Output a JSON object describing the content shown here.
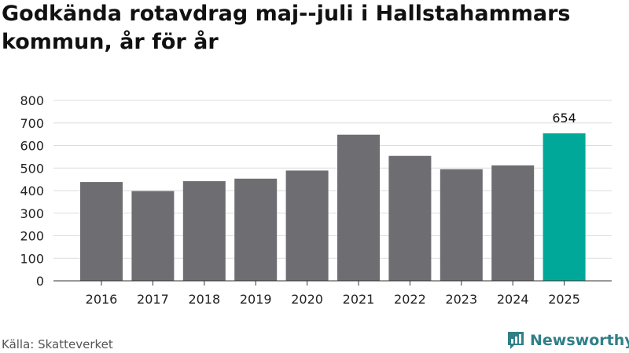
{
  "title": "Godkända rotavdrag maj--juli i Hallstahammars kommun, år för år",
  "source": "Källa: Skatteverket",
  "brand": {
    "name": "Newsworthy",
    "icon": "newsworthy-logo-icon"
  },
  "colors": {
    "bar": "#6e6d72",
    "highlight": "#00a89a",
    "grid": "#dddddd",
    "brand": "#2f7f88"
  },
  "chart_data": {
    "type": "bar",
    "title": "Godkända rotavdrag maj--juli i Hallstahammars kommun, år för år",
    "xlabel": "",
    "ylabel": "",
    "categories": [
      "2016",
      "2017",
      "2018",
      "2019",
      "2020",
      "2021",
      "2022",
      "2023",
      "2024",
      "2025"
    ],
    "values": [
      438,
      398,
      442,
      453,
      489,
      648,
      554,
      495,
      512,
      654
    ],
    "highlight_index": 9,
    "data_labels": [
      {
        "index": 9,
        "text": "654"
      }
    ],
    "ylim": [
      0,
      800
    ],
    "yticks": [
      0,
      100,
      200,
      300,
      400,
      500,
      600,
      700,
      800
    ],
    "grid": true,
    "legend": "none"
  }
}
